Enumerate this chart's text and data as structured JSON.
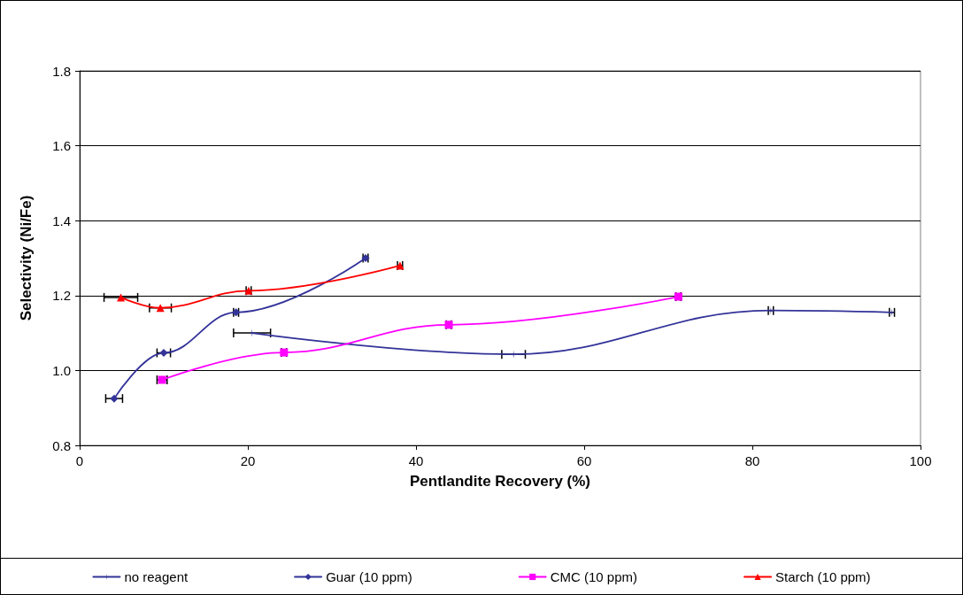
{
  "chart_data": {
    "type": "line",
    "xlabel": "Pentlandite Recovery (%)",
    "ylabel": "Selectivity (Ni/Fe)",
    "xlim": [
      0,
      100
    ],
    "xticks": [
      0,
      20,
      40,
      60,
      80,
      100
    ],
    "ylim": [
      0.8,
      1.8
    ],
    "yticks": [
      {
        "value": 0.8,
        "label": "0.8"
      },
      {
        "value": 1.0,
        "label": "1.0"
      },
      {
        "value": 1.2,
        "label": "1.2"
      },
      {
        "value": 1.4,
        "label": "1.4"
      },
      {
        "value": 1.6,
        "label": "1.6"
      },
      {
        "value": 1.8,
        "label": "1.8"
      }
    ],
    "grid": "y",
    "legend": "bottom",
    "line_style": "solid",
    "series": [
      {
        "name": "no reagent",
        "color": "#333399",
        "marker": "star",
        "x": [
          20.5,
          51.6,
          82.2,
          96.6
        ],
        "values": [
          1.1,
          1.043,
          1.16,
          1.155
        ],
        "xerrors": [
          2.2,
          1.4,
          0.3,
          0.3
        ]
      },
      {
        "name": "Guar (10 ppm)",
        "color": "#333399",
        "marker": "diamond",
        "x": [
          4.1,
          10.0,
          18.6,
          34.0
        ],
        "values": [
          0.925,
          1.047,
          1.155,
          1.3
        ],
        "xerrors": [
          1.0,
          0.8,
          0.3,
          0.3
        ]
      },
      {
        "name": "CMC (10 ppm)",
        "color": "#ff00ff",
        "marker": "square",
        "x": [
          9.8,
          24.3,
          43.9,
          71.2
        ],
        "values": [
          0.975,
          1.048,
          1.122,
          1.197
        ],
        "xerrors": [
          0.6,
          0.3,
          0.3,
          0.3
        ]
      },
      {
        "name": "Starch (10 ppm)",
        "color": "#ff0000",
        "marker": "triangle",
        "x": [
          4.9,
          9.6,
          20.1,
          38.1
        ],
        "values": [
          1.195,
          1.167,
          1.213,
          1.28
        ],
        "xerrors": [
          2.0,
          1.3,
          0.3,
          0.3
        ]
      }
    ]
  }
}
